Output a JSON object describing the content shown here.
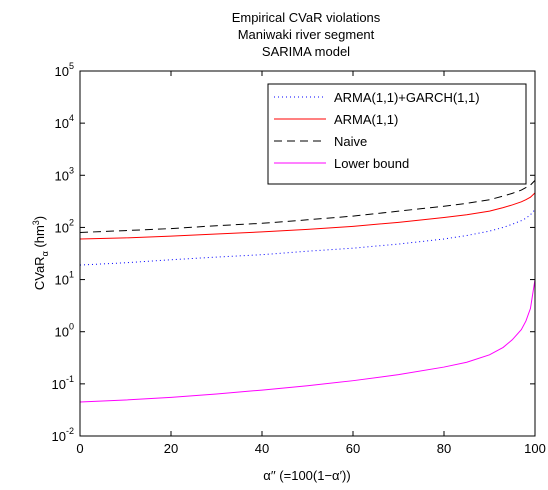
{
  "chart_data": {
    "type": "line",
    "title": [
      "Empirical CVaR violations",
      "Maniwaki river segment",
      "SARIMA model"
    ],
    "xlabel": "α′′ (=100(1−α′))",
    "ylabel_main": "CVaR",
    "ylabel_sub": "α",
    "ylabel_unit_pre": " (hm",
    "ylabel_unit_sup": "3",
    "ylabel_unit_post": ")",
    "xlim": [
      0,
      100
    ],
    "ylim": [
      0.01,
      100000
    ],
    "yscale": "log",
    "grid": false,
    "legend_position": "top-right",
    "x_ticks": [
      {
        "value": 0,
        "label": "0"
      },
      {
        "value": 20,
        "label": "20"
      },
      {
        "value": 40,
        "label": "40"
      },
      {
        "value": 60,
        "label": "60"
      },
      {
        "value": 80,
        "label": "80"
      },
      {
        "value": 100,
        "label": "100"
      }
    ],
    "y_ticks": [
      {
        "value": 0.01,
        "base": "10",
        "exp": "-2"
      },
      {
        "value": 0.1,
        "base": "10",
        "exp": "-1"
      },
      {
        "value": 1,
        "base": "10",
        "exp": "0"
      },
      {
        "value": 10,
        "base": "10",
        "exp": "1"
      },
      {
        "value": 100,
        "base": "10",
        "exp": "2"
      },
      {
        "value": 1000,
        "base": "10",
        "exp": "3"
      },
      {
        "value": 10000,
        "base": "10",
        "exp": "4"
      },
      {
        "value": 100000,
        "base": "10",
        "exp": "5"
      }
    ],
    "x": [
      0,
      10,
      20,
      30,
      40,
      50,
      60,
      70,
      80,
      85,
      90,
      93,
      95,
      97,
      98,
      99,
      100
    ],
    "series": [
      {
        "name": "ARMA(1,1)+GARCH(1,1)",
        "color": "#0000ff",
        "dash": "1,3",
        "values": [
          19,
          21,
          24,
          27,
          30,
          35,
          40,
          48,
          60,
          70,
          85,
          100,
          115,
          135,
          150,
          175,
          220
        ]
      },
      {
        "name": "ARMA(1,1)",
        "color": "#ff0000",
        "dash": "",
        "values": [
          60,
          63,
          68,
          75,
          82,
          92,
          105,
          125,
          155,
          175,
          205,
          240,
          270,
          310,
          340,
          380,
          460
        ]
      },
      {
        "name": "Naive",
        "color": "#000000",
        "dash": "8,5",
        "values": [
          80,
          87,
          95,
          108,
          120,
          140,
          165,
          205,
          255,
          290,
          340,
          400,
          450,
          520,
          580,
          650,
          800
        ]
      },
      {
        "name": "Lower bound",
        "color": "#ff00ff",
        "dash": "",
        "values": [
          0.045,
          0.049,
          0.055,
          0.064,
          0.076,
          0.092,
          0.115,
          0.15,
          0.21,
          0.26,
          0.36,
          0.5,
          0.7,
          1.1,
          1.6,
          2.8,
          10
        ]
      }
    ]
  }
}
